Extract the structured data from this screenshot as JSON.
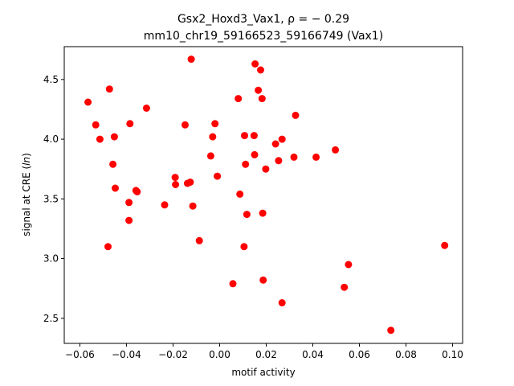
{
  "chart_data": {
    "type": "scatter",
    "title_line1": "Gsx2_Hoxd3_Vax1, ρ = − 0.29",
    "title_line2": "mm10_chr19_59166523_59166749 (Vax1)",
    "xlabel": "motif activity",
    "ylabel": "signal at CRE (ln)",
    "xlim": [
      -0.0667,
      0.1043
    ],
    "ylim": [
      2.29,
      4.775
    ],
    "x_ticks": [
      -0.06,
      -0.04,
      -0.02,
      0.0,
      0.02,
      0.04,
      0.06,
      0.08,
      0.1
    ],
    "x_tick_labels": [
      "−0.06",
      "−0.04",
      "−0.02",
      "0.00",
      "0.02",
      "0.04",
      "0.06",
      "0.08",
      "0.10"
    ],
    "y_ticks": [
      2.5,
      3.0,
      3.5,
      4.0,
      4.5
    ],
    "y_tick_labels": [
      "2.5",
      "3.0",
      "3.5",
      "4.0",
      "4.5"
    ],
    "grid": false,
    "marker_color": "#ff0000",
    "points": [
      {
        "x": -0.0565,
        "y": 4.31
      },
      {
        "x": -0.0532,
        "y": 4.12
      },
      {
        "x": -0.0514,
        "y": 4.0
      },
      {
        "x": -0.0479,
        "y": 3.1
      },
      {
        "x": -0.0473,
        "y": 4.42
      },
      {
        "x": -0.0458,
        "y": 3.79
      },
      {
        "x": -0.0452,
        "y": 4.02
      },
      {
        "x": -0.0448,
        "y": 3.59
      },
      {
        "x": -0.0389,
        "y": 3.32
      },
      {
        "x": -0.0389,
        "y": 3.47
      },
      {
        "x": -0.0385,
        "y": 4.13
      },
      {
        "x": -0.0359,
        "y": 3.57
      },
      {
        "x": -0.0354,
        "y": 3.56
      },
      {
        "x": -0.0314,
        "y": 4.26
      },
      {
        "x": -0.0236,
        "y": 3.45
      },
      {
        "x": -0.0191,
        "y": 3.68
      },
      {
        "x": -0.0189,
        "y": 3.62
      },
      {
        "x": -0.0148,
        "y": 4.12
      },
      {
        "x": -0.0138,
        "y": 3.63
      },
      {
        "x": -0.0126,
        "y": 3.64
      },
      {
        "x": -0.0122,
        "y": 4.67
      },
      {
        "x": -0.0115,
        "y": 3.44
      },
      {
        "x": -0.0087,
        "y": 3.15
      },
      {
        "x": -0.0038,
        "y": 3.86
      },
      {
        "x": -0.003,
        "y": 4.02
      },
      {
        "x": -0.002,
        "y": 4.13
      },
      {
        "x": -0.001,
        "y": 3.69
      },
      {
        "x": 0.0057,
        "y": 2.79
      },
      {
        "x": 0.008,
        "y": 4.34
      },
      {
        "x": 0.0087,
        "y": 3.54
      },
      {
        "x": 0.0105,
        "y": 3.1
      },
      {
        "x": 0.0107,
        "y": 4.03
      },
      {
        "x": 0.0111,
        "y": 3.79
      },
      {
        "x": 0.0117,
        "y": 3.37
      },
      {
        "x": 0.0148,
        "y": 4.03
      },
      {
        "x": 0.015,
        "y": 3.87
      },
      {
        "x": 0.0152,
        "y": 4.63
      },
      {
        "x": 0.0166,
        "y": 4.41
      },
      {
        "x": 0.0176,
        "y": 4.58
      },
      {
        "x": 0.0182,
        "y": 4.34
      },
      {
        "x": 0.0185,
        "y": 3.38
      },
      {
        "x": 0.0187,
        "y": 2.82
      },
      {
        "x": 0.0198,
        "y": 3.75
      },
      {
        "x": 0.024,
        "y": 3.96
      },
      {
        "x": 0.0253,
        "y": 3.82
      },
      {
        "x": 0.0268,
        "y": 4.0
      },
      {
        "x": 0.0268,
        "y": 2.63
      },
      {
        "x": 0.0319,
        "y": 3.85
      },
      {
        "x": 0.0326,
        "y": 4.2
      },
      {
        "x": 0.0414,
        "y": 3.85
      },
      {
        "x": 0.0497,
        "y": 3.91
      },
      {
        "x": 0.0535,
        "y": 2.76
      },
      {
        "x": 0.0553,
        "y": 2.95
      },
      {
        "x": 0.0735,
        "y": 2.4
      },
      {
        "x": 0.0966,
        "y": 3.11
      }
    ]
  }
}
